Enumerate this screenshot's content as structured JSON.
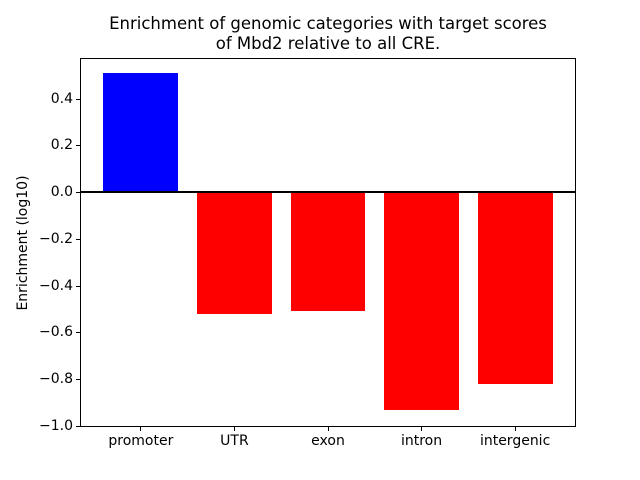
{
  "chart_data": {
    "type": "bar",
    "title": "Enrichment of genomic categories with target scores\nof Mbd2 relative to all CRE.",
    "title_lines": [
      "Enrichment of genomic categories with target scores",
      "of Mbd2 relative to all CRE."
    ],
    "xlabel": "",
    "ylabel": "Enrichment (log10)",
    "categories": [
      "promoter",
      "UTR",
      "exon",
      "intron",
      "intergenic"
    ],
    "values": [
      0.51,
      -0.52,
      -0.51,
      -0.93,
      -0.82
    ],
    "bar_colors": [
      "#0000ff",
      "#ff0000",
      "#ff0000",
      "#ff0000",
      "#ff0000"
    ],
    "bar_width": 0.8,
    "ylim": [
      -1.0,
      0.57
    ],
    "xlim": [
      -0.64,
      4.64
    ],
    "yticks": [
      0.4,
      0.2,
      0.0,
      -0.2,
      -0.4,
      -0.6,
      -0.8,
      -1.0
    ],
    "ytick_labels": [
      "0.4",
      "0.2",
      "0.0",
      "−0.2",
      "−0.4",
      "−0.6",
      "−0.8",
      "−1.0"
    ],
    "zero_line": true,
    "zero_line_color": "#000000",
    "grid": false,
    "background": "#ffffff",
    "text_color": "#000000"
  }
}
